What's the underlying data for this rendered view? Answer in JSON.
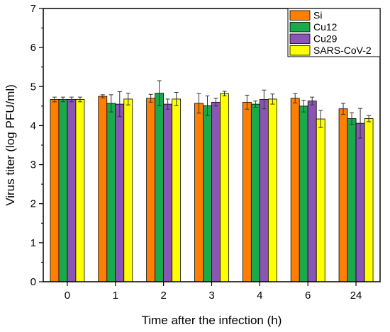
{
  "chart_data": {
    "type": "bar",
    "title": "",
    "xlabel": "Time after the infection (h)",
    "ylabel": "Virus titer (log PFU/ml)",
    "categories": [
      "0",
      "1",
      "2",
      "3",
      "4",
      "6",
      "24"
    ],
    "ylim": [
      0,
      7
    ],
    "yticks": [
      "0",
      "1",
      "2",
      "3",
      "4",
      "5",
      "6",
      "7"
    ],
    "grid": false,
    "legend_position": "top-right",
    "error_bars": true,
    "series": [
      {
        "name": "Si",
        "color": "#FF7F00",
        "values": [
          4.67,
          4.75,
          4.7,
          4.57,
          4.6,
          4.7,
          4.43
        ],
        "errors": [
          0.06,
          0.04,
          0.1,
          0.25,
          0.18,
          0.12,
          0.14
        ]
      },
      {
        "name": "Cu12",
        "color": "#1BAA4B",
        "values": [
          4.67,
          4.57,
          4.83,
          4.51,
          4.55,
          4.5,
          4.18
        ],
        "errors": [
          0.06,
          0.22,
          0.32,
          0.25,
          0.08,
          0.15,
          0.15
        ]
      },
      {
        "name": "Cu29",
        "color": "#8A55B5",
        "values": [
          4.67,
          4.55,
          4.55,
          4.6,
          4.67,
          4.63,
          4.06
        ],
        "errors": [
          0.06,
          0.32,
          0.13,
          0.1,
          0.24,
          0.1,
          0.38
        ]
      },
      {
        "name": "SARS-CoV-2",
        "color": "#FFFF00",
        "values": [
          4.67,
          4.68,
          4.68,
          4.82,
          4.68,
          4.17,
          4.18
        ],
        "errors": [
          0.06,
          0.15,
          0.17,
          0.06,
          0.13,
          0.22,
          0.08
        ]
      }
    ]
  }
}
